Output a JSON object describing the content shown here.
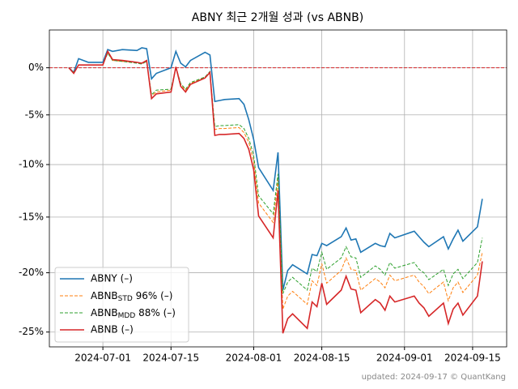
{
  "chart_data": {
    "type": "line",
    "title": "ABNY 최근 2개월 성과 (vs ABNB)",
    "footer": "updated: 2024-09-17 © QuantKang",
    "yscale": "log",
    "grid": true,
    "legend": "lower left",
    "hline": {
      "value": 0,
      "color": "#d62728"
    },
    "xlim": [
      "2024-06-20",
      "2024-09-22"
    ],
    "xticks": [
      "2024-07-01",
      "2024-07-15",
      "2024-08-01",
      "2024-08-15",
      "2024-09-01",
      "2024-09-15"
    ],
    "ylim": [
      4.2,
      -26.2
    ],
    "yticks": [
      {
        "value": 0,
        "label": "0%"
      },
      {
        "value": -5,
        "label": "-5%"
      },
      {
        "value": -10,
        "label": "-10%"
      },
      {
        "value": -15,
        "label": "-15%"
      },
      {
        "value": -20,
        "label": "-20%"
      },
      {
        "value": -25,
        "label": "-25%"
      }
    ],
    "x": [
      "2024-06-24",
      "2024-06-25",
      "2024-06-26",
      "2024-06-27",
      "2024-06-28",
      "2024-07-01",
      "2024-07-02",
      "2024-07-03",
      "2024-07-05",
      "2024-07-08",
      "2024-07-09",
      "2024-07-10",
      "2024-07-11",
      "2024-07-12",
      "2024-07-15",
      "2024-07-16",
      "2024-07-17",
      "2024-07-18",
      "2024-07-19",
      "2024-07-22",
      "2024-07-23",
      "2024-07-24",
      "2024-07-25",
      "2024-07-26",
      "2024-07-29",
      "2024-07-30",
      "2024-07-31",
      "2024-08-01",
      "2024-08-02",
      "2024-08-05",
      "2024-08-06",
      "2024-08-07",
      "2024-08-08",
      "2024-08-09",
      "2024-08-12",
      "2024-08-13",
      "2024-08-14",
      "2024-08-15",
      "2024-08-16",
      "2024-08-19",
      "2024-08-20",
      "2024-08-21",
      "2024-08-22",
      "2024-08-23",
      "2024-08-26",
      "2024-08-27",
      "2024-08-28",
      "2024-08-29",
      "2024-08-30",
      "2024-09-03",
      "2024-09-04",
      "2024-09-05",
      "2024-09-06",
      "2024-09-09",
      "2024-09-10",
      "2024-09-11",
      "2024-09-12",
      "2024-09-13",
      "2024-09-16",
      "2024-09-17"
    ],
    "series": [
      {
        "name": "ABNY (–)",
        "color": "#1f77b4",
        "style": "solid",
        "values": [
          0,
          -0.5,
          1.0,
          0.8,
          0.6,
          0.6,
          2.0,
          1.8,
          2.0,
          1.9,
          2.2,
          2.1,
          -1.2,
          -0.6,
          0.0,
          1.8,
          0.5,
          0.1,
          0.8,
          1.7,
          1.4,
          -3.6,
          -3.5,
          -3.4,
          -3.3,
          -3.9,
          -5.5,
          -7.5,
          -10.3,
          -12.5,
          -8.8,
          -21.5,
          -19.8,
          -19.3,
          -20.1,
          -18.4,
          -18.5,
          -17.4,
          -17.6,
          -16.8,
          -16.0,
          -17.1,
          -17.0,
          -18.2,
          -17.4,
          -17.6,
          -17.7,
          -16.5,
          -16.9,
          -16.3,
          -16.8,
          -17.3,
          -17.7,
          -16.8,
          -17.9,
          -17.0,
          -16.2,
          -17.2,
          -15.9,
          -13.3
        ]
      },
      {
        "name": [
          "ABNB",
          "STD",
          " 96% (–)"
        ],
        "color": "#ff7f0e",
        "style": "dashed",
        "values": [
          0,
          -0.6,
          0.3,
          0.3,
          0.3,
          0.3,
          1.7,
          0.8,
          0.7,
          0.6,
          0.5,
          0.7,
          -3.0,
          -2.6,
          -2.4,
          0.1,
          -1.8,
          -2.4,
          -1.7,
          -1.0,
          -0.5,
          -6.5,
          -6.4,
          -6.4,
          -6.3,
          -6.8,
          -7.8,
          -9.7,
          -13.7,
          -15.5,
          -11.5,
          -23.1,
          -22.0,
          -21.6,
          -22.7,
          -20.7,
          -21.1,
          -19.2,
          -20.9,
          -19.8,
          -18.7,
          -19.7,
          -19.8,
          -21.5,
          -20.5,
          -20.8,
          -21.3,
          -20.2,
          -20.7,
          -20.2,
          -20.8,
          -21.2,
          -21.8,
          -20.8,
          -22.4,
          -21.3,
          -20.8,
          -21.7,
          -20.2,
          -18.2
        ]
      },
      {
        "name": [
          "ABNB",
          "MDD",
          " 88% (–)"
        ],
        "color": "#2ca02c",
        "style": "dashed",
        "values": [
          0,
          -0.5,
          0.3,
          0.3,
          0.3,
          0.3,
          1.6,
          0.8,
          0.7,
          0.5,
          0.4,
          0.7,
          -2.9,
          -2.4,
          -2.3,
          0.1,
          -1.7,
          -2.3,
          -1.6,
          -1.0,
          -0.4,
          -6.2,
          -6.1,
          -6.1,
          -6.0,
          -6.4,
          -7.4,
          -9.1,
          -13.0,
          -14.7,
          -10.9,
          -21.8,
          -20.8,
          -20.4,
          -21.5,
          -19.6,
          -19.9,
          -18.2,
          -19.7,
          -18.7,
          -17.7,
          -18.6,
          -18.7,
          -20.4,
          -19.4,
          -19.7,
          -20.2,
          -19.1,
          -19.6,
          -19.1,
          -19.7,
          -20.0,
          -20.6,
          -19.7,
          -21.1,
          -20.1,
          -19.7,
          -20.5,
          -19.1,
          -16.9
        ]
      },
      {
        "name": "ABNB (–)",
        "color": "#d62728",
        "style": "solid",
        "values": [
          0,
          -0.6,
          0.3,
          0.3,
          0.3,
          0.3,
          1.8,
          0.9,
          0.8,
          0.6,
          0.5,
          0.8,
          -3.3,
          -2.8,
          -2.6,
          0.1,
          -2.0,
          -2.6,
          -1.8,
          -1.1,
          -0.5,
          -7.1,
          -7.0,
          -7.0,
          -6.9,
          -7.4,
          -8.5,
          -10.5,
          -14.9,
          -16.9,
          -12.5,
          -25.1,
          -23.9,
          -23.5,
          -24.7,
          -22.5,
          -22.9,
          -20.9,
          -22.7,
          -21.5,
          -20.3,
          -21.4,
          -21.5,
          -23.4,
          -22.3,
          -22.6,
          -23.2,
          -22.0,
          -22.5,
          -22.0,
          -22.6,
          -23.0,
          -23.7,
          -22.6,
          -24.3,
          -23.1,
          -22.6,
          -23.6,
          -22.0,
          -19.0
        ]
      }
    ]
  }
}
